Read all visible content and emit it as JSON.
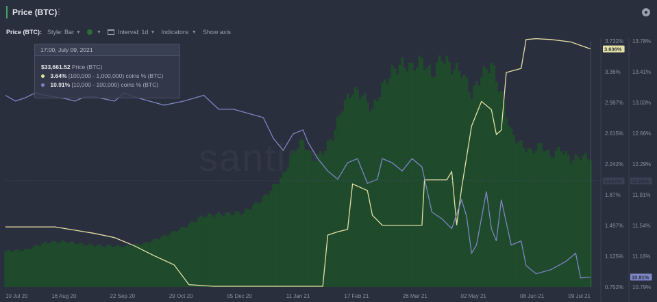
{
  "header": {
    "title": "Price (BTC)"
  },
  "controls": {
    "metric_label": "Price (BTC):",
    "style_label": "Style: Bar",
    "interval_label": "Interval: 1d",
    "indicators_label": "Indicators:",
    "show_axis_label": "Show axis"
  },
  "tooltip": {
    "date": "17:00, July 09, 2021",
    "price_value": "$33,661.52",
    "price_label": "Price (BTC)",
    "s1_value": "3.64%",
    "s1_label": "[100,000 - 1,000,000) coins % (BTC)",
    "s2_value": "10.91%",
    "s2_label": "[10,000 - 100,000) coins % (BTC)"
  },
  "watermark": "santiment",
  "colors": {
    "background": "#2a2f3d",
    "price_bars": "#1f4a2c",
    "series_100k_1m": "#e6e3a6",
    "series_10k_100k": "#7f86c6",
    "accent": "#3fa66a"
  },
  "chart_data": {
    "type": "bar",
    "x_ticks": [
      "10 Jul 20",
      "16 Aug 20",
      "22 Sep 20",
      "29 Oct 20",
      "05 Dec 20",
      "11 Jan 21",
      "17 Feb 21",
      "26 Mar 21",
      "02 May 21",
      "08 Jun 21",
      "09 Jul 21"
    ],
    "y_left_ticks": [
      "3.732%",
      "3.36%",
      "2.987%",
      "2.615%",
      "2.242%",
      "1.87%",
      "1.497%",
      "1.125%",
      "0.752%"
    ],
    "y_right_ticks": [
      "13.78%",
      "13.41%",
      "13.03%",
      "12.66%",
      "12.29%",
      "11.91%",
      "11.54%",
      "11.16%",
      "10.79%"
    ],
    "y_left_range": [
      0.752,
      3.732
    ],
    "y_right_range": [
      10.79,
      13.78
    ],
    "last_values": {
      "series_100k_1m": "3.636%",
      "price_marker": "2.037%",
      "price_marker_right": "12.08%",
      "series_10k_100k": "10.91%"
    },
    "series": [
      {
        "name": "Price (BTC)",
        "type": "bar",
        "axis": "hidden",
        "points": [
          [
            0,
            9300
          ],
          [
            8,
            9600
          ],
          [
            16,
            11500
          ],
          [
            24,
            11800
          ],
          [
            32,
            11000
          ],
          [
            40,
            10700
          ],
          [
            48,
            10600
          ],
          [
            56,
            11300
          ],
          [
            64,
            13200
          ],
          [
            72,
            15500
          ],
          [
            80,
            18500
          ],
          [
            88,
            19000
          ],
          [
            96,
            19300
          ],
          [
            104,
            23000
          ],
          [
            112,
            29000
          ],
          [
            116,
            35000
          ],
          [
            120,
            38000
          ],
          [
            124,
            33000
          ],
          [
            128,
            35000
          ],
          [
            132,
            39000
          ],
          [
            136,
            47000
          ],
          [
            140,
            51000
          ],
          [
            144,
            50000
          ],
          [
            148,
            46000
          ],
          [
            152,
            52000
          ],
          [
            156,
            56000
          ],
          [
            160,
            58000
          ],
          [
            164,
            57000
          ],
          [
            168,
            59000
          ],
          [
            172,
            55000
          ],
          [
            176,
            60000
          ],
          [
            180,
            57000
          ],
          [
            184,
            56000
          ],
          [
            188,
            50000
          ],
          [
            192,
            55000
          ],
          [
            196,
            58000
          ],
          [
            200,
            50000
          ],
          [
            204,
            40000
          ],
          [
            208,
            37000
          ],
          [
            212,
            35000
          ],
          [
            216,
            37000
          ],
          [
            220,
            34000
          ],
          [
            224,
            36000
          ],
          [
            228,
            33000
          ],
          [
            232,
            34000
          ],
          [
            236,
            33661
          ]
        ]
      },
      {
        "name": "[100,000 - 1,000,000) coins % (BTC)",
        "type": "line",
        "axis": "left",
        "points": [
          [
            0,
            1.48
          ],
          [
            20,
            1.48
          ],
          [
            28,
            1.44
          ],
          [
            36,
            1.4
          ],
          [
            44,
            1.35
          ],
          [
            52,
            1.25
          ],
          [
            60,
            1.13
          ],
          [
            68,
            1.02
          ],
          [
            74,
            0.78
          ],
          [
            84,
            0.76
          ],
          [
            100,
            0.76
          ],
          [
            118,
            0.76
          ],
          [
            128,
            0.76
          ],
          [
            130,
            1.38
          ],
          [
            134,
            1.42
          ],
          [
            138,
            1.45
          ],
          [
            140,
            2.0
          ],
          [
            146,
            1.92
          ],
          [
            148,
            1.62
          ],
          [
            152,
            1.5
          ],
          [
            156,
            1.5
          ],
          [
            164,
            1.5
          ],
          [
            168,
            1.5
          ],
          [
            169,
            2.05
          ],
          [
            178,
            2.05
          ],
          [
            180,
            2.15
          ],
          [
            182,
            1.5
          ],
          [
            184,
            1.95
          ],
          [
            188,
            2.7
          ],
          [
            192,
            3.0
          ],
          [
            196,
            2.9
          ],
          [
            198,
            2.6
          ],
          [
            200,
            2.65
          ],
          [
            202,
            3.35
          ],
          [
            208,
            3.4
          ],
          [
            210,
            3.75
          ],
          [
            214,
            3.76
          ],
          [
            220,
            3.75
          ],
          [
            228,
            3.72
          ],
          [
            236,
            3.636
          ]
        ]
      },
      {
        "name": "[10,000 - 100,000) coins % (BTC)",
        "type": "line",
        "axis": "right",
        "points": [
          [
            0,
            13.12
          ],
          [
            4,
            13.05
          ],
          [
            8,
            13.09
          ],
          [
            12,
            13.15
          ],
          [
            16,
            13.12
          ],
          [
            20,
            13.1
          ],
          [
            24,
            13.08
          ],
          [
            28,
            13.05
          ],
          [
            32,
            13.1
          ],
          [
            36,
            13.1
          ],
          [
            44,
            13.05
          ],
          [
            48,
            13.15
          ],
          [
            52,
            13.1
          ],
          [
            58,
            13.05
          ],
          [
            64,
            13.0
          ],
          [
            72,
            13.05
          ],
          [
            80,
            13.12
          ],
          [
            86,
            12.95
          ],
          [
            92,
            12.95
          ],
          [
            98,
            12.9
          ],
          [
            104,
            12.85
          ],
          [
            108,
            12.6
          ],
          [
            112,
            12.45
          ],
          [
            116,
            12.65
          ],
          [
            120,
            12.7
          ],
          [
            122,
            12.55
          ],
          [
            126,
            12.35
          ],
          [
            130,
            12.2
          ],
          [
            134,
            12.1
          ],
          [
            138,
            12.3
          ],
          [
            142,
            12.35
          ],
          [
            146,
            12.05
          ],
          [
            150,
            12.1
          ],
          [
            152,
            12.35
          ],
          [
            156,
            12.3
          ],
          [
            160,
            12.2
          ],
          [
            164,
            12.35
          ],
          [
            168,
            12.25
          ],
          [
            172,
            11.7
          ],
          [
            176,
            11.62
          ],
          [
            180,
            11.5
          ],
          [
            184,
            11.85
          ],
          [
            186,
            11.65
          ],
          [
            188,
            11.2
          ],
          [
            190,
            11.3
          ],
          [
            194,
            11.95
          ],
          [
            196,
            11.5
          ],
          [
            198,
            11.35
          ],
          [
            200,
            11.85
          ],
          [
            204,
            11.3
          ],
          [
            208,
            11.35
          ],
          [
            210,
            11.05
          ],
          [
            214,
            10.95
          ],
          [
            220,
            11.0
          ],
          [
            226,
            11.1
          ],
          [
            230,
            11.2
          ],
          [
            232,
            10.9
          ],
          [
            236,
            10.91
          ]
        ]
      }
    ]
  }
}
